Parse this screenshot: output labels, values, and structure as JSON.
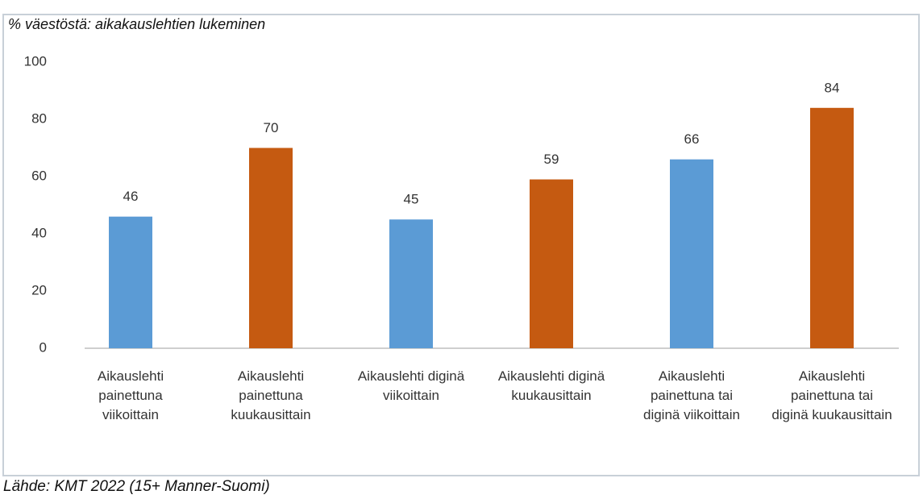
{
  "chart_data": {
    "type": "bar",
    "title": "% väestöstä: aikakauslehtien lukeminen",
    "source": "Lähde: KMT 2022 (15+ Manner-Suomi)",
    "categories": [
      "Aikauslehti painettuna viikoittain",
      "Aikauslehti painettuna kuukausittain",
      "Aikauslehti diginä viikoittain",
      "Aikauslehti diginä kuukausittain",
      "Aikauslehti painettuna tai diginä viikoittain",
      "Aikauslehti painettuna tai diginä kuukausittain"
    ],
    "values": [
      46,
      70,
      45,
      59,
      66,
      84
    ],
    "colors": [
      "#5b9bd5",
      "#c55a11",
      "#5b9bd5",
      "#c55a11",
      "#5b9bd5",
      "#c55a11"
    ],
    "ylim": [
      0,
      100
    ],
    "yticks": [
      0,
      20,
      40,
      60,
      80,
      100
    ],
    "grid": false
  }
}
